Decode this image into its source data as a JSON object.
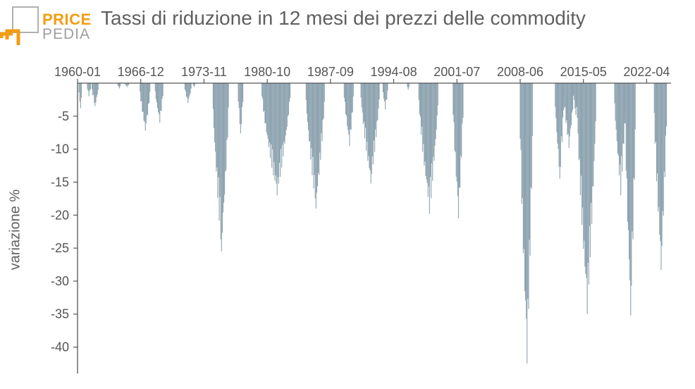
{
  "brand": {
    "word1": "PRICE",
    "word2": "PEDIA",
    "color_primary": "#f39c12",
    "color_secondary": "#9e9e9e"
  },
  "colors": {
    "bar": "#8ea4b0",
    "axis": "#555555",
    "text": "#606060"
  },
  "chart_data": {
    "type": "bar",
    "title": "Tassi di riduzione in 12 mesi dei prezzi delle commodity",
    "ylabel": "variazione %",
    "xlabel": "",
    "x_tick_labels": [
      "1960-01",
      "1966-12",
      "1973-11",
      "1980-10",
      "1987-09",
      "1994-08",
      "2001-07",
      "2008-06",
      "2015-05",
      "2022-04"
    ],
    "x_range": [
      "1960-01",
      "2024-12"
    ],
    "ylim": [
      -44,
      0
    ],
    "y_ticks": [
      -5,
      -10,
      -15,
      -20,
      -25,
      -30,
      -35,
      -40
    ],
    "grid": false,
    "episodes": [
      {
        "start": "1960-03",
        "end": "1960-06",
        "min": -3.8
      },
      {
        "start": "1961-02",
        "end": "1961-06",
        "min": -2.0
      },
      {
        "start": "1961-08",
        "end": "1962-04",
        "min": -3.5
      },
      {
        "start": "1964-06",
        "end": "1964-09",
        "min": -0.8
      },
      {
        "start": "1965-04",
        "end": "1965-08",
        "min": -0.6
      },
      {
        "start": "1966-11",
        "end": "1967-12",
        "min": -7.2
      },
      {
        "start": "1968-07",
        "end": "1969-05",
        "min": -6.0
      },
      {
        "start": "1971-10",
        "end": "1972-06",
        "min": -3.0
      },
      {
        "start": "1972-09",
        "end": "1972-11",
        "min": -0.6
      },
      {
        "start": "1974-11",
        "end": "1976-07",
        "min": -25.5
      },
      {
        "start": "1977-08",
        "end": "1978-02",
        "min": -7.6
      },
      {
        "start": "1980-03",
        "end": "1983-04",
        "min": -17.0
      },
      {
        "start": "1985-01",
        "end": "1987-01",
        "min": -19.0
      },
      {
        "start": "1989-03",
        "end": "1990-03",
        "min": -9.5
      },
      {
        "start": "1991-01",
        "end": "1993-01",
        "min": -15.2
      },
      {
        "start": "1993-06",
        "end": "1993-12",
        "min": -4.0
      },
      {
        "start": "1996-02",
        "end": "1996-04",
        "min": -1.0
      },
      {
        "start": "1997-05",
        "end": "1999-06",
        "min": -19.8
      },
      {
        "start": "2001-02",
        "end": "2002-03",
        "min": -20.5
      },
      {
        "start": "2008-06",
        "end": "2009-10",
        "min": -42.5
      },
      {
        "start": "2012-04",
        "end": "2013-03",
        "min": -14.5
      },
      {
        "start": "2013-03",
        "end": "2014-04",
        "min": -9.8
      },
      {
        "start": "2014-04",
        "end": "2014-09",
        "min": -4.8
      },
      {
        "start": "2014-09",
        "end": "2016-09",
        "min": -35.0
      },
      {
        "start": "2018-10",
        "end": "2019-12",
        "min": -17.0
      },
      {
        "start": "2019-12",
        "end": "2021-01",
        "min": -35.2
      },
      {
        "start": "2023-02",
        "end": "2024-06",
        "min": -28.3
      }
    ]
  }
}
